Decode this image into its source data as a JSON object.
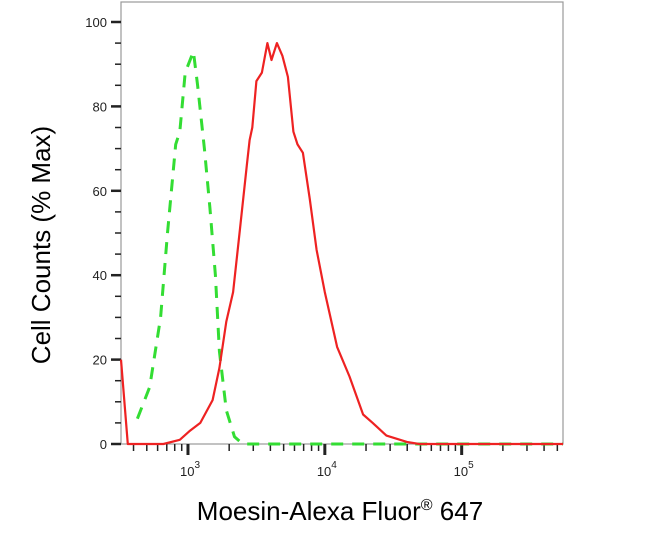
{
  "chart_data": {
    "type": "line",
    "title": "",
    "xlabel": "Moesin-Alexa Fluor",
    "xlabel_sup": "®",
    "xlabel_suffix": " 647",
    "ylabel": "Cell Counts (% Max)",
    "x_scale": "log",
    "xlim": [
      324,
      550000
    ],
    "ylim": [
      0,
      100
    ],
    "y_ticks": [
      0,
      20,
      40,
      60,
      80,
      100
    ],
    "x_ticks": [
      {
        "base": "10",
        "exp": "3",
        "value": 1000
      },
      {
        "base": "10",
        "exp": "4",
        "value": 10000
      },
      {
        "base": "10",
        "exp": "5",
        "value": 100000
      }
    ],
    "grid": false,
    "series": [
      {
        "color": "#33dd33",
        "style": "dashed",
        "x": [
          427,
          525,
          631,
          708,
          813,
          871,
          955,
          1096,
          1175,
          1318,
          1445,
          1585,
          1698,
          1905,
          2188,
          2512,
          550000
        ],
        "y": [
          6,
          13.5,
          30,
          50,
          71,
          74,
          88,
          93,
          85,
          70,
          56,
          40,
          22,
          8,
          1.7,
          0,
          0
        ]
      },
      {
        "color": "#ee2222",
        "style": "solid",
        "x": [
          324,
          363,
          661,
          871,
          1023,
          1230,
          1514,
          1698,
          1905,
          2138,
          2399,
          2692,
          2818,
          2951,
          3162,
          3467,
          3802,
          4074,
          4467,
          4898,
          5370,
          5888,
          6310,
          6918,
          7762,
          8710,
          10000,
          12300,
          15140,
          19050,
          22390,
          28180,
          39810,
          48980,
          550000
        ],
        "y": [
          20,
          0,
          0,
          1,
          3,
          5,
          10.4,
          18,
          29,
          36,
          51,
          66,
          72,
          75,
          86,
          88,
          95,
          91,
          95,
          92,
          87,
          74,
          71,
          69,
          58,
          46,
          36,
          23,
          16,
          7,
          5,
          2,
          0.5,
          0,
          0
        ]
      }
    ]
  }
}
